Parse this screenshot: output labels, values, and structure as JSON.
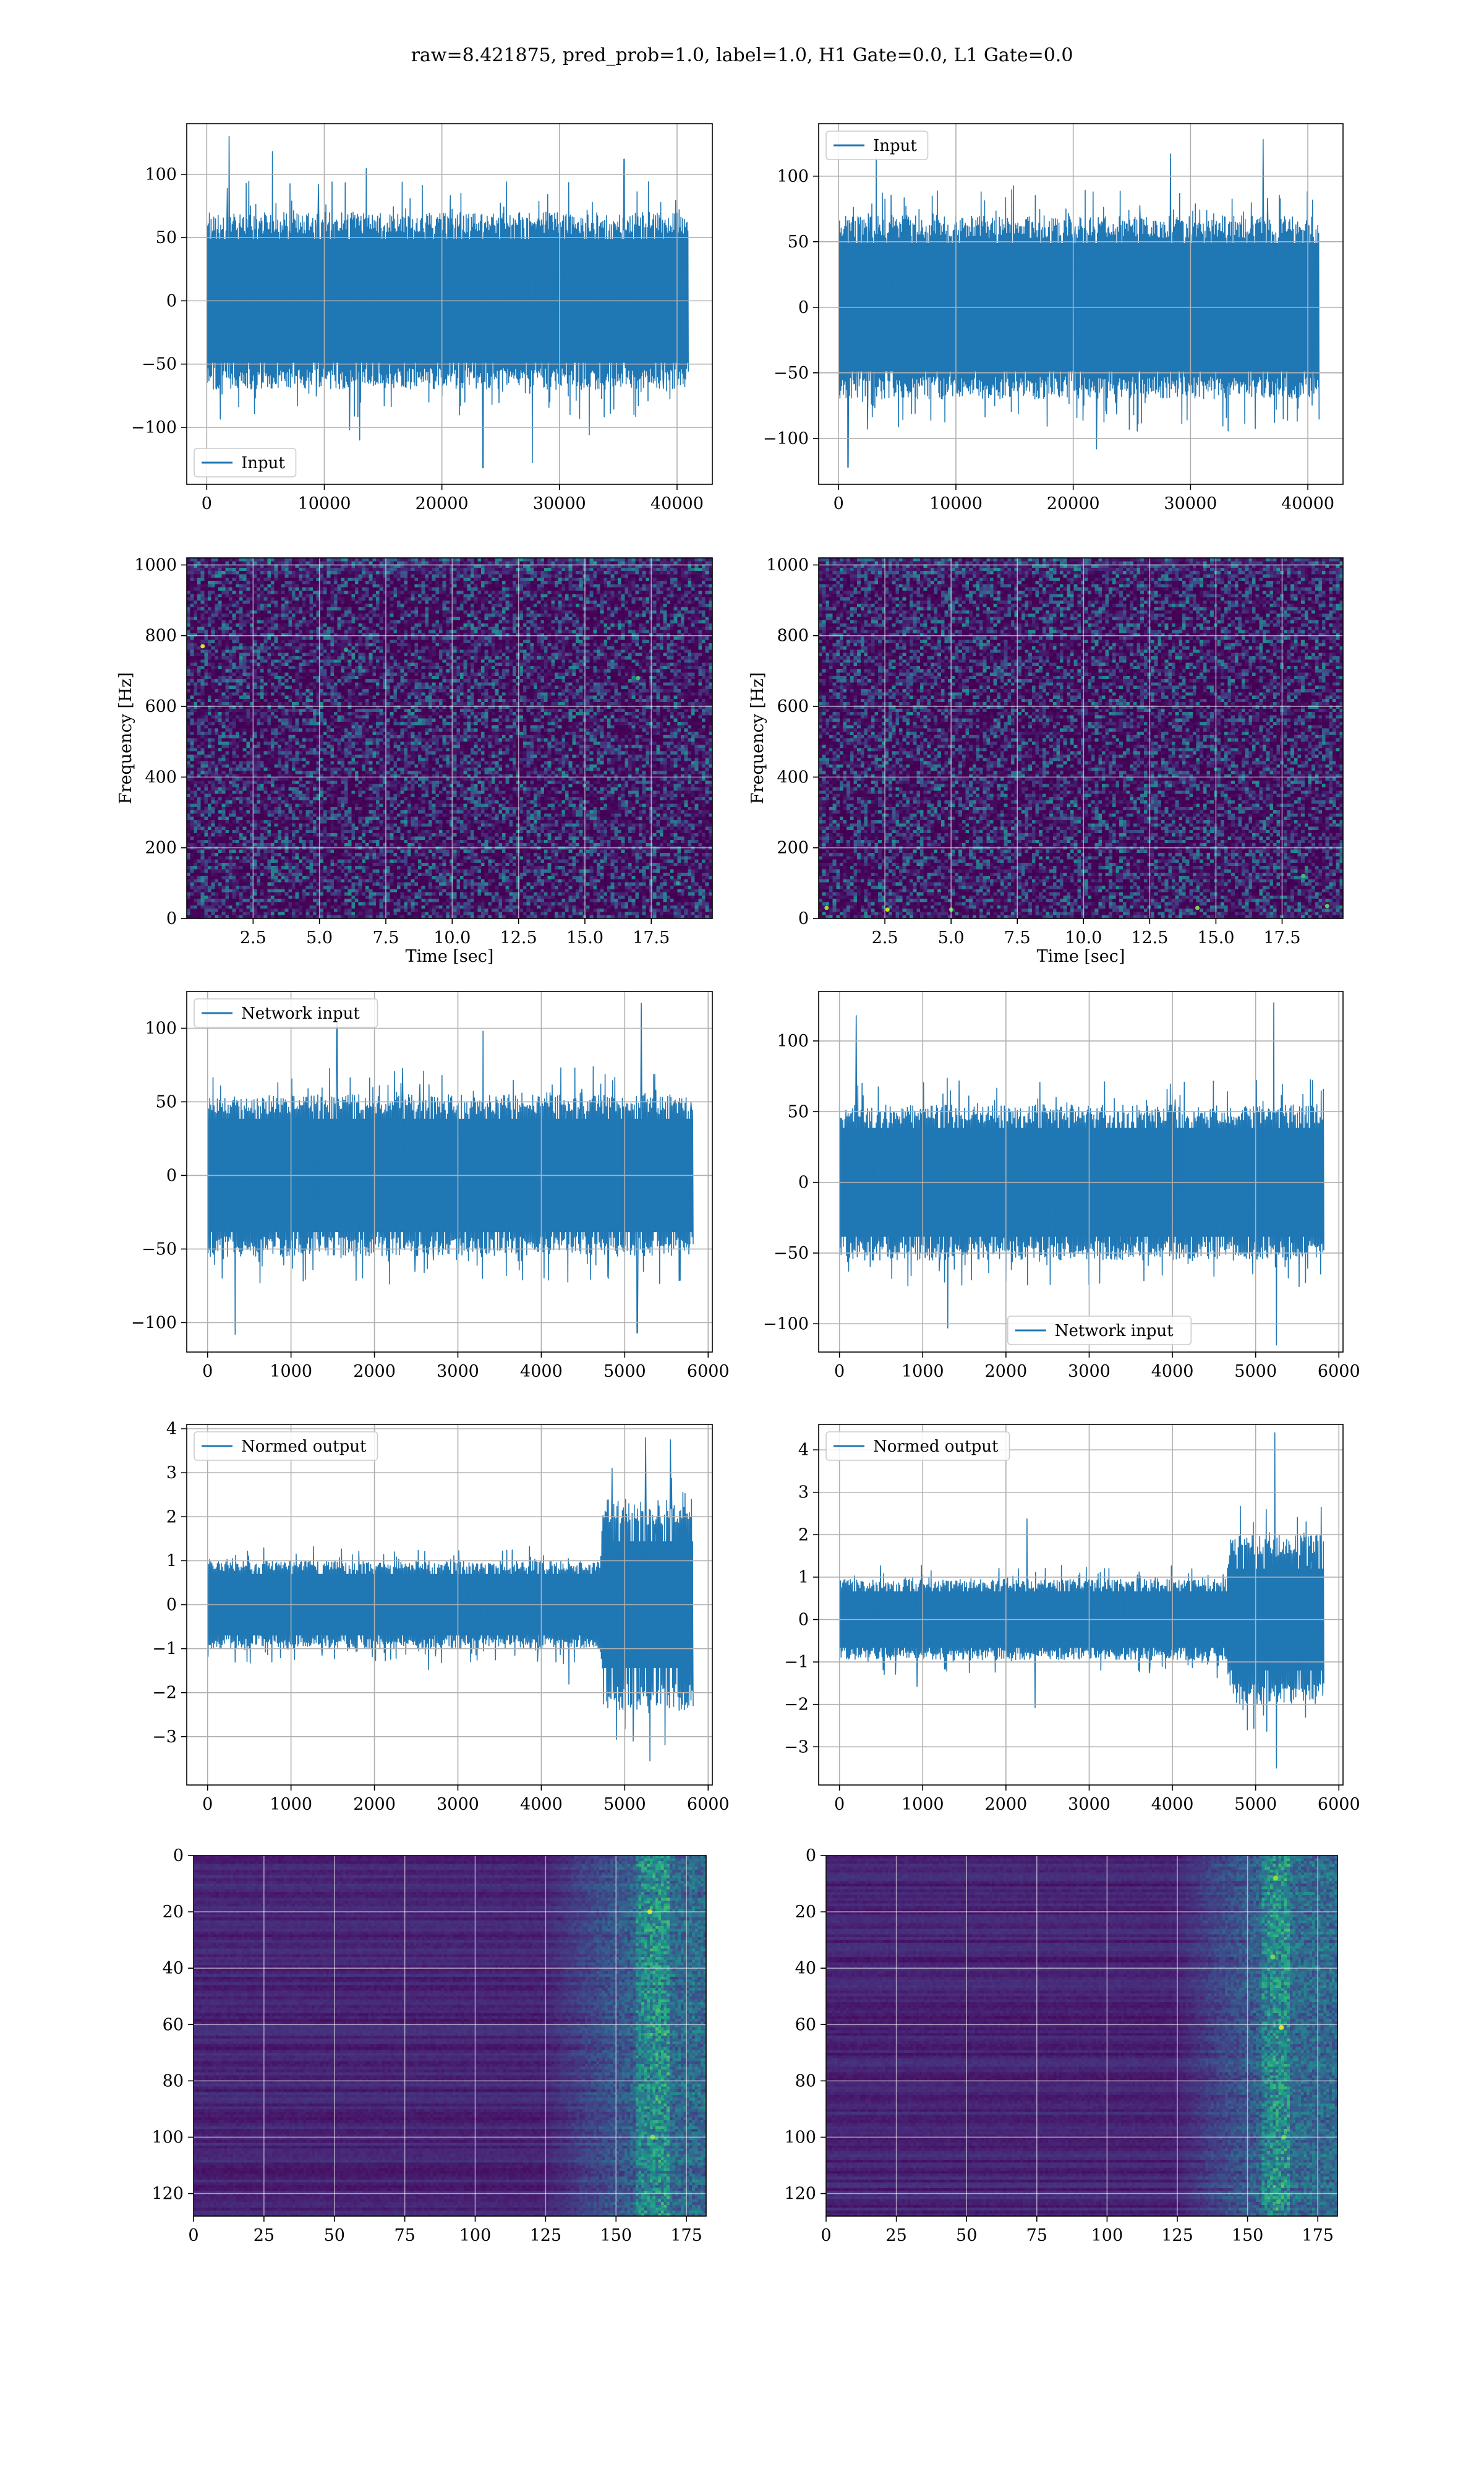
{
  "figure": {
    "title": "raw=8.421875, pred_prob=1.0, label=1.0, H1 Gate=0.0, L1 Gate=0.0"
  },
  "chart_data": [
    {
      "id": "r1c1",
      "type": "line",
      "title": "",
      "xlabel": "",
      "ylabel": "",
      "xlim": [
        -1700,
        43000
      ],
      "ylim": [
        -145,
        140
      ],
      "xticks": [
        0,
        10000,
        20000,
        30000,
        40000
      ],
      "xtick_labels": [
        "0",
        "10000",
        "20000",
        "30000",
        "40000"
      ],
      "yticks": [
        -100,
        -50,
        0,
        50,
        100
      ],
      "ytick_labels": [
        "−100",
        "−50",
        "0",
        "50",
        "100"
      ],
      "grid": true,
      "legend": {
        "label": "Input",
        "placement": "bottom-left"
      },
      "series": [
        {
          "name": "Input",
          "color": "#1f77b4",
          "x_range": [
            0,
            40960
          ],
          "n_points": 1100,
          "envelope": [
            {
              "x": 0,
              "amp": 70
            },
            {
              "x": 40960,
              "amp": 70
            }
          ],
          "peaks": [
            {
              "x": 1900,
              "y": 130
            },
            {
              "x": 5600,
              "y": 118
            },
            {
              "x": 23500,
              "y": -132
            },
            {
              "x": 27700,
              "y": -128
            },
            {
              "x": 35500,
              "y": 112
            },
            {
              "x": 13000,
              "y": -110
            }
          ]
        }
      ]
    },
    {
      "id": "r1c2",
      "type": "line",
      "title": "",
      "xlabel": "",
      "ylabel": "",
      "xlim": [
        -1700,
        43000
      ],
      "ylim": [
        -135,
        140
      ],
      "xticks": [
        0,
        10000,
        20000,
        30000,
        40000
      ],
      "xtick_labels": [
        "0",
        "10000",
        "20000",
        "30000",
        "40000"
      ],
      "yticks": [
        -100,
        -50,
        0,
        50,
        100
      ],
      "ytick_labels": [
        "−100",
        "−50",
        "0",
        "50",
        "100"
      ],
      "grid": true,
      "legend": {
        "label": "Input",
        "placement": "top-left"
      },
      "series": [
        {
          "name": "Input",
          "color": "#1f77b4",
          "x_range": [
            0,
            40960
          ],
          "n_points": 1100,
          "envelope": [
            {
              "x": 0,
              "amp": 70
            },
            {
              "x": 40960,
              "amp": 70
            }
          ],
          "peaks": [
            {
              "x": 36200,
              "y": 128
            },
            {
              "x": 800,
              "y": -122
            },
            {
              "x": 3200,
              "y": 114
            },
            {
              "x": 28300,
              "y": 117
            },
            {
              "x": 22000,
              "y": -108
            }
          ]
        }
      ]
    },
    {
      "id": "r2c1",
      "type": "heatmap",
      "title": "",
      "xlabel": "Time [sec]",
      "ylabel": "Frequency [Hz]",
      "xlim": [
        0,
        19.8
      ],
      "ylim": [
        0,
        1020
      ],
      "xticks": [
        2.5,
        5.0,
        7.5,
        10.0,
        12.5,
        15.0,
        17.5
      ],
      "xtick_labels": [
        "2.5",
        "5.0",
        "7.5",
        "10.0",
        "12.5",
        "15.0",
        "17.5"
      ],
      "yticks": [
        0,
        200,
        400,
        600,
        800,
        1000
      ],
      "ytick_labels": [
        "0",
        "200",
        "400",
        "600",
        "800",
        "1000"
      ],
      "grid": true,
      "colormap": "viridis",
      "grid_cells": [
        150,
        110
      ],
      "hotspots": [
        {
          "x": 0.6,
          "y": 770,
          "v": 0.95
        },
        {
          "x": 17.0,
          "y": 680,
          "v": 0.7
        },
        {
          "x": 18.5,
          "y": 100,
          "v": 0.6
        },
        {
          "x": 6.0,
          "y": 760,
          "v": 0.6
        }
      ]
    },
    {
      "id": "r2c2",
      "type": "heatmap",
      "title": "",
      "xlabel": "Time [sec]",
      "ylabel": "Frequency [Hz]",
      "xlim": [
        0,
        19.8
      ],
      "ylim": [
        0,
        1020
      ],
      "xticks": [
        2.5,
        5.0,
        7.5,
        10.0,
        12.5,
        15.0,
        17.5
      ],
      "xtick_labels": [
        "2.5",
        "5.0",
        "7.5",
        "10.0",
        "12.5",
        "15.0",
        "17.5"
      ],
      "yticks": [
        0,
        200,
        400,
        600,
        800,
        1000
      ],
      "ytick_labels": [
        "0",
        "200",
        "400",
        "600",
        "800",
        "1000"
      ],
      "grid": true,
      "colormap": "viridis",
      "grid_cells": [
        150,
        110
      ],
      "hotspots": [
        {
          "x": 0.3,
          "y": 30,
          "v": 0.85
        },
        {
          "x": 2.6,
          "y": 25,
          "v": 0.9
        },
        {
          "x": 5.0,
          "y": 25,
          "v": 0.75
        },
        {
          "x": 14.3,
          "y": 30,
          "v": 0.8
        },
        {
          "x": 18.3,
          "y": 120,
          "v": 0.7
        },
        {
          "x": 19.2,
          "y": 35,
          "v": 0.75
        }
      ]
    },
    {
      "id": "r3c1",
      "type": "line",
      "title": "",
      "xlabel": "",
      "ylabel": "",
      "xlim": [
        -250,
        6050
      ],
      "ylim": [
        -120,
        125
      ],
      "xticks": [
        0,
        1000,
        2000,
        3000,
        4000,
        5000,
        6000
      ],
      "xtick_labels": [
        "0",
        "1000",
        "2000",
        "3000",
        "4000",
        "5000",
        "6000"
      ],
      "yticks": [
        -100,
        -50,
        0,
        50,
        100
      ],
      "ytick_labels": [
        "−100",
        "−50",
        "0",
        "50",
        "100"
      ],
      "grid": true,
      "legend": {
        "label": "Network input",
        "placement": "top-left"
      },
      "series": [
        {
          "name": "Network input",
          "color": "#1f77b4",
          "x_range": [
            0,
            5820
          ],
          "n_points": 900,
          "envelope": [
            {
              "x": 0,
              "amp": 55
            },
            {
              "x": 5820,
              "amp": 55
            }
          ],
          "peaks": [
            {
              "x": 5200,
              "y": 117
            },
            {
              "x": 330,
              "y": -108
            },
            {
              "x": 1550,
              "y": 105
            },
            {
              "x": 5150,
              "y": -107
            },
            {
              "x": 3300,
              "y": 98
            }
          ]
        }
      ]
    },
    {
      "id": "r3c2",
      "type": "line",
      "title": "",
      "xlabel": "",
      "ylabel": "",
      "xlim": [
        -250,
        6050
      ],
      "ylim": [
        -120,
        135
      ],
      "xticks": [
        0,
        1000,
        2000,
        3000,
        4000,
        5000,
        6000
      ],
      "xtick_labels": [
        "0",
        "1000",
        "2000",
        "3000",
        "4000",
        "5000",
        "6000"
      ],
      "yticks": [
        -100,
        -50,
        0,
        50,
        100
      ],
      "ytick_labels": [
        "−100",
        "−50",
        "0",
        "50",
        "100"
      ],
      "grid": true,
      "legend": {
        "label": "Network input",
        "placement": "bottom-center"
      },
      "series": [
        {
          "name": "Network input",
          "color": "#1f77b4",
          "x_range": [
            0,
            5820
          ],
          "n_points": 900,
          "envelope": [
            {
              "x": 0,
              "amp": 55
            },
            {
              "x": 5820,
              "amp": 55
            }
          ],
          "peaks": [
            {
              "x": 5220,
              "y": 127
            },
            {
              "x": 200,
              "y": 118
            },
            {
              "x": 5250,
              "y": -115
            },
            {
              "x": 1300,
              "y": -103
            }
          ]
        }
      ]
    },
    {
      "id": "r4c1",
      "type": "line",
      "title": "",
      "xlabel": "",
      "ylabel": "",
      "xlim": [
        -250,
        6050
      ],
      "ylim": [
        -4.1,
        4.1
      ],
      "xticks": [
        0,
        1000,
        2000,
        3000,
        4000,
        5000,
        6000
      ],
      "xtick_labels": [
        "0",
        "1000",
        "2000",
        "3000",
        "4000",
        "5000",
        "6000"
      ],
      "yticks": [
        -3,
        -2,
        -1,
        0,
        1,
        2,
        3,
        4
      ],
      "ytick_labels": [
        "−3",
        "−2",
        "−1",
        "0",
        "1",
        "2",
        "3",
        "4"
      ],
      "grid": true,
      "legend": {
        "label": "Normed output",
        "placement": "top-left"
      },
      "series": [
        {
          "name": "Normed output",
          "color": "#1f77b4",
          "x_range": [
            0,
            5820
          ],
          "n_points": 900,
          "envelope": [
            {
              "x": 0,
              "amp": 1.0
            },
            {
              "x": 4700,
              "amp": 1.0
            },
            {
              "x": 4750,
              "amp": 2.4
            },
            {
              "x": 5820,
              "amp": 2.4
            }
          ],
          "peaks": [
            {
              "x": 5250,
              "y": 3.8
            },
            {
              "x": 5550,
              "y": 3.75
            },
            {
              "x": 5300,
              "y": -3.55
            },
            {
              "x": 4850,
              "y": 3.1
            },
            {
              "x": 5100,
              "y": -3.1
            }
          ]
        }
      ]
    },
    {
      "id": "r4c2",
      "type": "line",
      "title": "",
      "xlabel": "",
      "ylabel": "",
      "xlim": [
        -250,
        6050
      ],
      "ylim": [
        -3.9,
        4.6
      ],
      "xticks": [
        0,
        1000,
        2000,
        3000,
        4000,
        5000,
        6000
      ],
      "xtick_labels": [
        "0",
        "1000",
        "2000",
        "3000",
        "4000",
        "5000",
        "6000"
      ],
      "yticks": [
        -3,
        -2,
        -1,
        0,
        1,
        2,
        3,
        4
      ],
      "ytick_labels": [
        "−3",
        "−2",
        "−1",
        "0",
        "1",
        "2",
        "3",
        "4"
      ],
      "grid": true,
      "legend": {
        "label": "Normed output",
        "placement": "top-left"
      },
      "series": [
        {
          "name": "Normed output",
          "color": "#1f77b4",
          "x_range": [
            0,
            5820
          ],
          "n_points": 900,
          "envelope": [
            {
              "x": 0,
              "amp": 0.95
            },
            {
              "x": 4650,
              "amp": 0.95
            },
            {
              "x": 4700,
              "amp": 2.0
            },
            {
              "x": 5820,
              "amp": 2.0
            }
          ],
          "peaks": [
            {
              "x": 5230,
              "y": 4.4
            },
            {
              "x": 5250,
              "y": -3.5
            },
            {
              "x": 5600,
              "y": -2.3
            },
            {
              "x": 4900,
              "y": -2.6
            }
          ]
        }
      ]
    },
    {
      "id": "r5c1",
      "type": "heatmap",
      "title": "",
      "xlabel": "",
      "ylabel": "",
      "xlim": [
        0,
        182
      ],
      "ylim": [
        128,
        0
      ],
      "xticks": [
        0,
        25,
        50,
        75,
        100,
        125,
        150,
        175
      ],
      "xtick_labels": [
        "0",
        "25",
        "50",
        "75",
        "100",
        "125",
        "150",
        "175"
      ],
      "yticks": [
        0,
        20,
        40,
        60,
        80,
        100,
        120
      ],
      "ytick_labels": [
        "0",
        "20",
        "40",
        "60",
        "80",
        "100",
        "120"
      ],
      "grid": true,
      "colormap": "viridis",
      "grid_cells": [
        182,
        128
      ],
      "activity_onset": 125,
      "activity_peak": 163,
      "hotspots": [
        {
          "x": 162,
          "y": 20,
          "v": 0.9
        },
        {
          "x": 163,
          "y": 100,
          "v": 0.8
        },
        {
          "x": 165,
          "y": 55,
          "v": 0.7
        }
      ]
    },
    {
      "id": "r5c2",
      "type": "heatmap",
      "title": "",
      "xlabel": "",
      "ylabel": "",
      "xlim": [
        0,
        182
      ],
      "ylim": [
        128,
        0
      ],
      "xticks": [
        0,
        25,
        50,
        75,
        100,
        125,
        150,
        175
      ],
      "xtick_labels": [
        "0",
        "25",
        "50",
        "75",
        "100",
        "125",
        "150",
        "175"
      ],
      "yticks": [
        0,
        20,
        40,
        60,
        80,
        100,
        120
      ],
      "ytick_labels": [
        "0",
        "20",
        "40",
        "60",
        "80",
        "100",
        "120"
      ],
      "grid": true,
      "colormap": "viridis",
      "grid_cells": [
        182,
        128
      ],
      "activity_onset": 125,
      "activity_peak": 160,
      "hotspots": [
        {
          "x": 160,
          "y": 8,
          "v": 0.85
        },
        {
          "x": 162,
          "y": 61,
          "v": 0.95
        },
        {
          "x": 159,
          "y": 36,
          "v": 0.8
        },
        {
          "x": 163,
          "y": 100,
          "v": 0.75
        },
        {
          "x": 161,
          "y": 123,
          "v": 0.7
        }
      ]
    }
  ]
}
